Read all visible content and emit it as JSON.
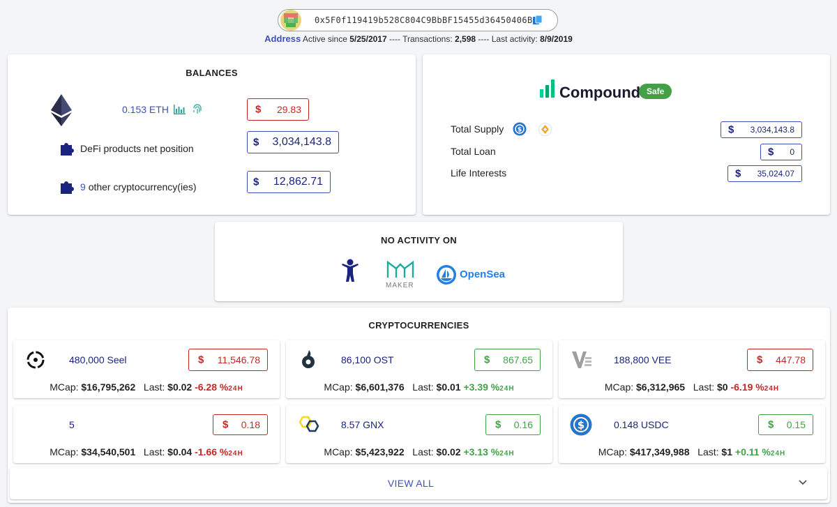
{
  "header": {
    "address": "0x5F0f119419b528C804C9BbBF15455d36450406B4",
    "address_label": "Address",
    "active_since_label": "Active since",
    "active_since": "5/25/2017",
    "sep1": "----",
    "transactions_label": "Transactions:",
    "transactions": "2,598",
    "sep2": "----",
    "last_activity_label": "Last activity:",
    "last_activity": "8/9/2019"
  },
  "balances": {
    "title": "BALANCES",
    "eth_amount": "0.153 ETH",
    "eth_value": "29.83",
    "defi_label": "DeFi products net position",
    "defi_value": "3,034,143.8",
    "other_count": "9",
    "other_label": "other cryptocurrency(ies)",
    "other_value": "12,862.71",
    "currency": "$"
  },
  "compound": {
    "name": "Compound",
    "badge": "Safe",
    "rows": [
      {
        "label": "Total Supply",
        "value": "3,034,143.8"
      },
      {
        "label": "Total Loan",
        "value": "0"
      },
      {
        "label": "Life Interests",
        "value": "35,024.07"
      }
    ]
  },
  "no_activity": {
    "title": "NO ACTIVITY ON",
    "maker_label": "MAKER",
    "opensea_label": "OpenSea"
  },
  "cryptos": {
    "title": "CRYPTOCURRENCIES",
    "mcap_label": "MCap:",
    "last_label": "Last:",
    "suffix_24h": "24H",
    "items": [
      {
        "name": "480,000 Seel",
        "value": "11,546.78",
        "mcap": "$16,795,262",
        "last": "$0.02",
        "change": "-6.28 %",
        "dir": "neg",
        "icon": "seel-icon"
      },
      {
        "name": "86,100 OST",
        "value": "867.65",
        "mcap": "$6,601,376",
        "last": "$0.01",
        "change": "+3.39 %",
        "dir": "pos",
        "icon": "ost-icon"
      },
      {
        "name": "188,800 VEE",
        "value": "447.78",
        "mcap": "$6,312,965",
        "last": "$0",
        "change": "-6.19 %",
        "dir": "neg",
        "icon": "vee-icon"
      },
      {
        "name": "5",
        "value": "0.18",
        "mcap": "$34,540,501",
        "last": "$0.04",
        "change": "-1.66 %",
        "dir": "neg",
        "icon": "unknown-token-icon"
      },
      {
        "name": "8.57 GNX",
        "value": "0.16",
        "mcap": "$5,423,922",
        "last": "$0.02",
        "change": "+3.13 %",
        "dir": "pos",
        "icon": "gnx-icon"
      },
      {
        "name": "0.148 USDC",
        "value": "0.15",
        "mcap": "$417,349,988",
        "last": "$1",
        "change": "+0.11 %",
        "dir": "pos",
        "icon": "usdc-icon"
      }
    ],
    "view_all": "VIEW ALL"
  }
}
